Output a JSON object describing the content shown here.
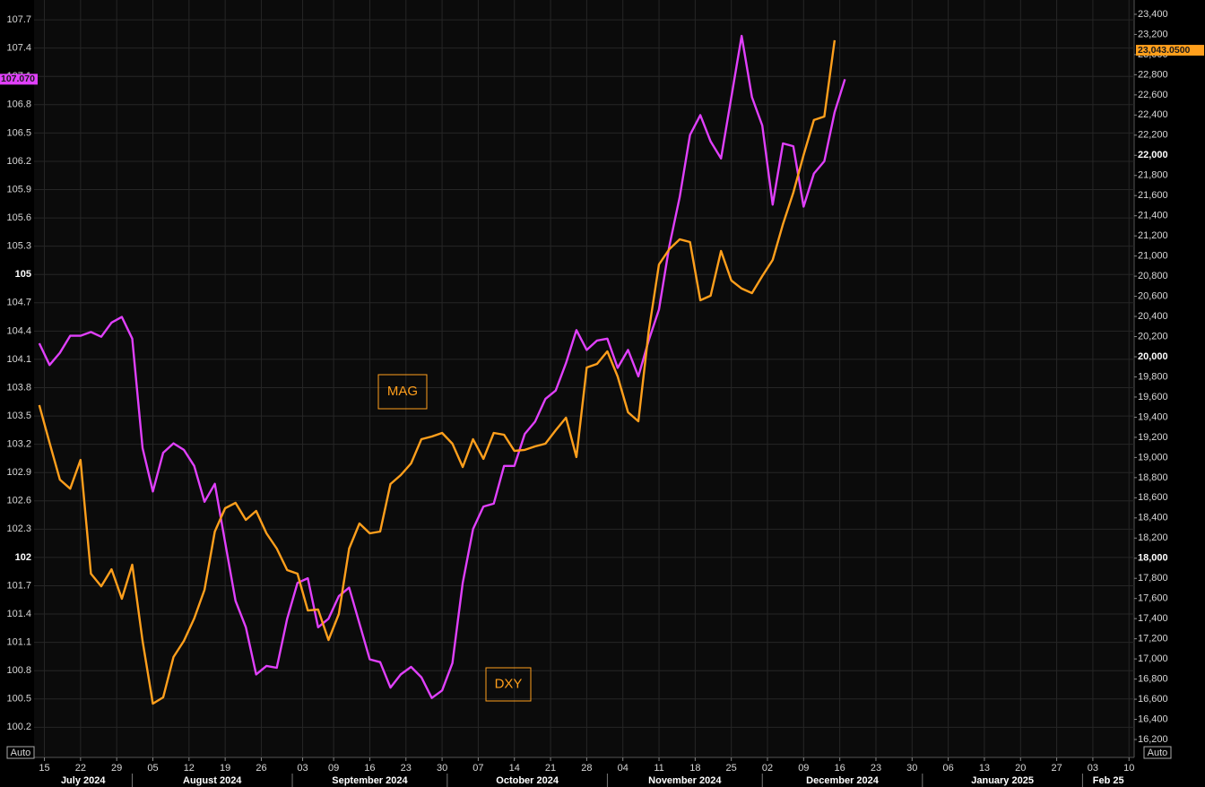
{
  "chart_data": {
    "type": "line",
    "auto_label": "Auto",
    "x": [
      "2024-07-14",
      "2024-07-16",
      "2024-07-18",
      "2024-07-20",
      "2024-07-22",
      "2024-07-24",
      "2024-07-26",
      "2024-07-28",
      "2024-07-30",
      "2024-08-01",
      "2024-08-03",
      "2024-08-05",
      "2024-08-07",
      "2024-08-09",
      "2024-08-11",
      "2024-08-13",
      "2024-08-15",
      "2024-08-17",
      "2024-08-19",
      "2024-08-21",
      "2024-08-23",
      "2024-08-25",
      "2024-08-27",
      "2024-08-29",
      "2024-08-31",
      "2024-09-02",
      "2024-09-04",
      "2024-09-06",
      "2024-09-08",
      "2024-09-10",
      "2024-09-12",
      "2024-09-14",
      "2024-09-16",
      "2024-09-18",
      "2024-09-20",
      "2024-09-22",
      "2024-09-24",
      "2024-09-26",
      "2024-09-28",
      "2024-09-30",
      "2024-10-02",
      "2024-10-04",
      "2024-10-06",
      "2024-10-08",
      "2024-10-10",
      "2024-10-12",
      "2024-10-14",
      "2024-10-16",
      "2024-10-18",
      "2024-10-20",
      "2024-10-22",
      "2024-10-24",
      "2024-10-26",
      "2024-10-28",
      "2024-10-30",
      "2024-11-01",
      "2024-11-03",
      "2024-11-05",
      "2024-11-07",
      "2024-11-09",
      "2024-11-11",
      "2024-11-13",
      "2024-11-15",
      "2024-11-17",
      "2024-11-19",
      "2024-11-21",
      "2024-11-23",
      "2024-11-25",
      "2024-11-27",
      "2024-11-29",
      "2024-12-01",
      "2024-12-03",
      "2024-12-05",
      "2024-12-07",
      "2024-12-09",
      "2024-12-11",
      "2024-12-13",
      "2024-12-15",
      "2024-12-17"
    ],
    "series": [
      {
        "name": "DXY",
        "color": "#e040fb",
        "axis": "y",
        "last_value": 107.07,
        "last_label": "107.070",
        "values": [
          104.27,
          104.04,
          104.17,
          104.35,
          104.35,
          104.39,
          104.34,
          104.49,
          104.55,
          104.32,
          103.16,
          102.7,
          103.11,
          103.21,
          103.14,
          102.97,
          102.59,
          102.78,
          102.16,
          101.54,
          101.26,
          100.76,
          100.85,
          100.83,
          101.35,
          101.73,
          101.78,
          101.26,
          101.35,
          101.59,
          101.68,
          101.3,
          100.92,
          100.89,
          100.62,
          100.76,
          100.84,
          100.73,
          100.51,
          100.59,
          100.88,
          101.73,
          102.3,
          102.54,
          102.57,
          102.97,
          102.97,
          103.31,
          103.44,
          103.68,
          103.77,
          104.06,
          104.41,
          104.2,
          104.3,
          104.32,
          104.01,
          104.2,
          103.92,
          104.3,
          104.63,
          105.3,
          105.82,
          106.48,
          106.69,
          106.41,
          106.23,
          106.88,
          107.53,
          106.88,
          106.58,
          105.74,
          106.39,
          106.36,
          105.72,
          106.07,
          106.2,
          106.72,
          107.07
        ]
      },
      {
        "name": "MAG",
        "color": "#ff9f1c",
        "axis": "y2",
        "last_value": 23043.05,
        "last_label": "23,043.0500",
        "values": [
          19520,
          19145,
          18780,
          18690,
          18976,
          17846,
          17721,
          17890,
          17597,
          17935,
          17179,
          16556,
          16618,
          17019,
          17179,
          17401,
          17686,
          18265,
          18496,
          18549,
          18380,
          18469,
          18247,
          18096,
          17882,
          17846,
          17481,
          17490,
          17188,
          17446,
          18096,
          18345,
          18247,
          18265,
          18736,
          18825,
          18941,
          19181,
          19208,
          19244,
          19137,
          18905,
          19181,
          18986,
          19244,
          19226,
          19066,
          19075,
          19110,
          19137,
          19270,
          19395,
          19004,
          19893,
          19929,
          20053,
          19804,
          19448,
          19359,
          20249,
          20917,
          21068,
          21166,
          21139,
          20561,
          20606,
          21050,
          20757,
          20677,
          20632,
          20801,
          20961,
          21317,
          21629,
          22003,
          22350,
          22385,
          23142,
          null
        ]
      }
    ],
    "annotations": [
      {
        "text": "MAG"
      },
      {
        "text": "DXY"
      }
    ],
    "xlim": [
      "2024-07-13",
      "2025-02-11"
    ],
    "xticks": [
      {
        "value": "2024-07-15",
        "label": "15"
      },
      {
        "value": "2024-07-22",
        "label": "22"
      },
      {
        "value": "2024-07-29",
        "label": "29"
      },
      {
        "value": "2024-08-05",
        "label": "05"
      },
      {
        "value": "2024-08-12",
        "label": "12"
      },
      {
        "value": "2024-08-19",
        "label": "19"
      },
      {
        "value": "2024-08-26",
        "label": "26"
      },
      {
        "value": "2024-09-03",
        "label": "03"
      },
      {
        "value": "2024-09-09",
        "label": "09"
      },
      {
        "value": "2024-09-16",
        "label": "16"
      },
      {
        "value": "2024-09-23",
        "label": "23"
      },
      {
        "value": "2024-09-30",
        "label": "30"
      },
      {
        "value": "2024-10-07",
        "label": "07"
      },
      {
        "value": "2024-10-14",
        "label": "14"
      },
      {
        "value": "2024-10-21",
        "label": "21"
      },
      {
        "value": "2024-10-28",
        "label": "28"
      },
      {
        "value": "2024-11-04",
        "label": "04"
      },
      {
        "value": "2024-11-11",
        "label": "11"
      },
      {
        "value": "2024-11-18",
        "label": "18"
      },
      {
        "value": "2024-11-25",
        "label": "25"
      },
      {
        "value": "2024-12-02",
        "label": "02"
      },
      {
        "value": "2024-12-09",
        "label": "09"
      },
      {
        "value": "2024-12-16",
        "label": "16"
      },
      {
        "value": "2024-12-23",
        "label": "23"
      },
      {
        "value": "2024-12-30",
        "label": "30"
      },
      {
        "value": "2025-01-06",
        "label": "06"
      },
      {
        "value": "2025-01-13",
        "label": "13"
      },
      {
        "value": "2025-01-20",
        "label": "20"
      },
      {
        "value": "2025-01-27",
        "label": "27"
      },
      {
        "value": "2025-02-03",
        "label": "03"
      },
      {
        "value": "2025-02-10",
        "label": "10"
      }
    ],
    "month_labels": [
      {
        "value": "2024-07",
        "label": "July 2024"
      },
      {
        "value": "2024-08",
        "label": "August 2024"
      },
      {
        "value": "2024-09",
        "label": "September 2024"
      },
      {
        "value": "2024-10",
        "label": "October 2024"
      },
      {
        "value": "2024-11",
        "label": "November 2024"
      },
      {
        "value": "2024-12",
        "label": "December 2024"
      },
      {
        "value": "2025-01",
        "label": "January 2025"
      },
      {
        "value": "2025-02",
        "label": "Feb 25"
      }
    ],
    "ylim": [
      99.88,
      107.91
    ],
    "yticks": [
      100.2,
      100.5,
      100.8,
      101.1,
      101.4,
      101.7,
      102,
      102.3,
      102.6,
      102.9,
      103.2,
      103.5,
      103.8,
      104.1,
      104.4,
      104.7,
      105,
      105.3,
      105.6,
      105.9,
      106.2,
      106.5,
      106.8,
      107.1,
      107.4,
      107.7
    ],
    "y2lim": [
      16022,
      23542
    ],
    "y2ticks": [
      {
        "value": 16200,
        "label": "16,200"
      },
      {
        "value": 16400,
        "label": "16,400"
      },
      {
        "value": 16600,
        "label": "16,600"
      },
      {
        "value": 16800,
        "label": "16,800"
      },
      {
        "value": 17000,
        "label": "17,000"
      },
      {
        "value": 17200,
        "label": "17,200"
      },
      {
        "value": 17400,
        "label": "17,400"
      },
      {
        "value": 17600,
        "label": "17,600"
      },
      {
        "value": 17800,
        "label": "17,800"
      },
      {
        "value": 18000,
        "label": "18,000"
      },
      {
        "value": 18200,
        "label": "18,200"
      },
      {
        "value": 18400,
        "label": "18,400"
      },
      {
        "value": 18600,
        "label": "18,600"
      },
      {
        "value": 18800,
        "label": "18,800"
      },
      {
        "value": 19000,
        "label": "19,000"
      },
      {
        "value": 19200,
        "label": "19,200"
      },
      {
        "value": 19400,
        "label": "19,400"
      },
      {
        "value": 19600,
        "label": "19,600"
      },
      {
        "value": 19800,
        "label": "19,800"
      },
      {
        "value": 20000,
        "label": "20,000"
      },
      {
        "value": 20200,
        "label": "20,200"
      },
      {
        "value": 20400,
        "label": "20,400"
      },
      {
        "value": 20600,
        "label": "20,600"
      },
      {
        "value": 20800,
        "label": "20,800"
      },
      {
        "value": 21000,
        "label": "21,000"
      },
      {
        "value": 21200,
        "label": "21,200"
      },
      {
        "value": 21400,
        "label": "21,400"
      },
      {
        "value": 21600,
        "label": "21,600"
      },
      {
        "value": 21800,
        "label": "21,800"
      },
      {
        "value": 22000,
        "label": "22,000"
      },
      {
        "value": 22200,
        "label": "22,200"
      },
      {
        "value": 22400,
        "label": "22,400"
      },
      {
        "value": 22600,
        "label": "22,600"
      },
      {
        "value": 22800,
        "label": "22,800"
      },
      {
        "value": 23000,
        "label": "23,000"
      },
      {
        "value": 23200,
        "label": "23,200"
      },
      {
        "value": 23400,
        "label": "23,400"
      }
    ],
    "grid": true
  }
}
